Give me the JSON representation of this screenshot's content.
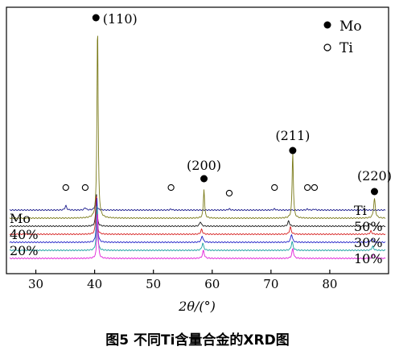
{
  "caption": "图5  不同Ti含量合金的XRD图",
  "chart_data": {
    "type": "line",
    "xlabel": "2θ/(°)",
    "ylabel": "",
    "xlim": [
      25,
      90
    ],
    "x_ticks": [
      30,
      40,
      50,
      60,
      70,
      80
    ],
    "grid": false,
    "legend": [
      {
        "label": "Mo",
        "marker": "filled-circle"
      },
      {
        "label": "Ti",
        "marker": "open-circle"
      }
    ],
    "legend_position": "top-right",
    "peak_labels": [
      {
        "text": "(110)",
        "x": 40.5,
        "marker": "filled-circle"
      },
      {
        "text": "(200)",
        "x": 58.6,
        "marker": "filled-circle"
      },
      {
        "text": "(211)",
        "x": 73.7,
        "marker": "filled-circle"
      },
      {
        "text": "(220)",
        "x": 87.6,
        "marker": "filled-circle"
      }
    ],
    "ti_markers": [
      35.1,
      38.4,
      53.0,
      62.9,
      70.6,
      76.2,
      77.4
    ],
    "series": [
      {
        "name": "Ti",
        "label_side": "right",
        "color": "#1a1a8c",
        "offset": 6,
        "peak_scale": 0.55,
        "peaks": [
          [
            35.1,
            0.9
          ],
          [
            38.4,
            0.5
          ],
          [
            40.2,
            2.0
          ],
          [
            53.0,
            0.2
          ],
          [
            62.9,
            0.25
          ],
          [
            70.6,
            0.25
          ],
          [
            76.2,
            0.2
          ],
          [
            77.4,
            0.2
          ]
        ]
      },
      {
        "name": "Mo",
        "label_side": "left",
        "color": "#7b7b1a",
        "offset": 5,
        "peak_scale": 1.0,
        "peaks": [
          [
            40.5,
            22.0
          ],
          [
            58.6,
            3.3
          ],
          [
            73.7,
            7.5
          ],
          [
            87.6,
            2.2
          ]
        ]
      },
      {
        "name": "50%",
        "label_side": "right",
        "color": "#1a1a1a",
        "offset": 4,
        "peak_scale": 0.85,
        "peaks": [
          [
            40.3,
            4.5
          ],
          [
            58.0,
            0.6
          ],
          [
            73.0,
            0.7
          ],
          [
            86.8,
            0.4
          ]
        ]
      },
      {
        "name": "40%",
        "label_side": "left",
        "color": "#d62020",
        "offset": 3,
        "peak_scale": 0.9,
        "peaks": [
          [
            40.3,
            5.0
          ],
          [
            58.2,
            0.6
          ],
          [
            73.3,
            0.9
          ],
          [
            87.0,
            0.4
          ]
        ]
      },
      {
        "name": "30%",
        "label_side": "right",
        "color": "#2020c8",
        "offset": 2,
        "peak_scale": 0.9,
        "peaks": [
          [
            40.4,
            5.5
          ],
          [
            58.3,
            0.8
          ],
          [
            73.5,
            1.0
          ],
          [
            87.2,
            0.5
          ]
        ]
      },
      {
        "name": "20%",
        "label_side": "left",
        "color": "#18a0a0",
        "offset": 1,
        "peak_scale": 0.9,
        "peaks": [
          [
            40.4,
            5.5
          ],
          [
            58.4,
            0.9
          ],
          [
            73.6,
            1.1
          ],
          [
            87.3,
            0.5
          ]
        ]
      },
      {
        "name": "10%",
        "label_side": "right",
        "color": "#e020d8",
        "offset": 0,
        "peak_scale": 0.9,
        "peaks": [
          [
            40.5,
            6.0
          ],
          [
            58.5,
            1.0
          ],
          [
            73.7,
            1.2
          ],
          [
            87.5,
            0.6
          ]
        ]
      }
    ]
  }
}
